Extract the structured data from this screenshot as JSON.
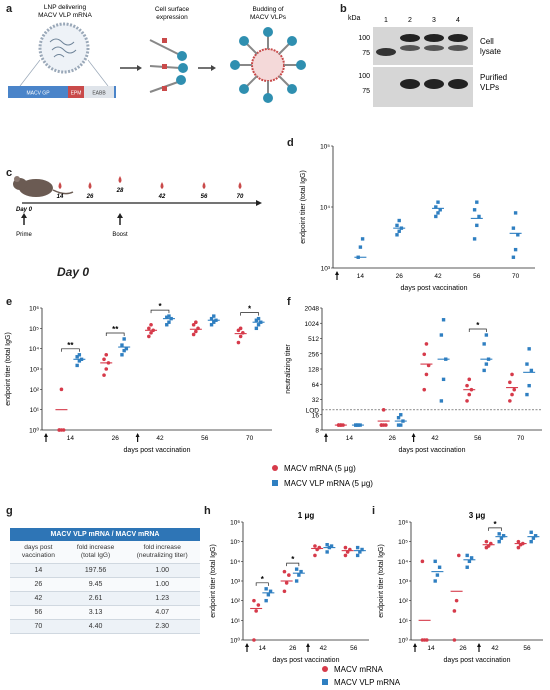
{
  "panel_letters": {
    "a": "a",
    "b": "b",
    "c": "c",
    "d": "d",
    "e": "e",
    "f": "f",
    "g": "g",
    "h": "h",
    "i": "i"
  },
  "panel_a": {
    "lnp_label": "LNP delivering\nMACV VLP mRNA",
    "surface_label": "Cell surface\nexpression",
    "budding_label": "Budding of\nMACV VLPs",
    "construct": {
      "gp": "MACV GP",
      "epm": "EPM",
      "eabb": "EABB"
    }
  },
  "panel_b": {
    "kda": "kDa",
    "lanes": [
      "1",
      "2",
      "3",
      "4"
    ],
    "markers_top": [
      "100",
      "75"
    ],
    "markers_bottom": [
      "100",
      "75"
    ],
    "row_labels": [
      "Cell\nlysate",
      "Purified\nVLPs"
    ]
  },
  "panel_c": {
    "days": [
      "14",
      "26",
      "28",
      "42",
      "56",
      "70"
    ],
    "day0": "Day 0",
    "prime": "Prime",
    "boost": "Boost",
    "big_day0": "Day 0"
  },
  "legend_ef": {
    "red_label": "MACV mRNA (5 μg)",
    "blue_label": "MACV VLP mRNA (5 μg)",
    "red_color": "#d63a4a",
    "blue_color": "#2f7fc1"
  },
  "legend_hi": {
    "red_label": "MACV mRNA",
    "blue_label": "MACV VLP mRNA"
  },
  "table_g": {
    "title": "MACV VLP mRNA / MACV mRNA",
    "headers": [
      "days post vaccination",
      "fold increase (total IgG)",
      "fold increase (neutralizing titer)"
    ],
    "rows": [
      [
        "14",
        "197.56",
        "1.00"
      ],
      [
        "26",
        "9.45",
        "1.00"
      ],
      [
        "42",
        "2.61",
        "1.23"
      ],
      [
        "56",
        "3.13",
        "4.07"
      ],
      [
        "70",
        "4.40",
        "2.30"
      ]
    ]
  },
  "chart_data": [
    {
      "panel": "d",
      "type": "scatter",
      "scale": "log",
      "xlabel": "days post vaccination",
      "ylabel": "endpoint titer (total IgG)",
      "categories": [
        "14",
        "26",
        "42",
        "56",
        "70"
      ],
      "ylim_exp": [
        3,
        5
      ],
      "yticks": [
        "10³",
        "10⁴",
        "10⁵"
      ],
      "series": [
        {
          "color": "blue",
          "points": [
            [
              1500,
              2200,
              3000
            ],
            [
              3500,
              4000,
              4500,
              5000,
              6000
            ],
            [
              7000,
              8000,
              9000,
              10000,
              12000
            ],
            [
              3000,
              5000,
              7000,
              9000,
              12000
            ],
            [
              1500,
              2000,
              3500,
              4500,
              8000
            ]
          ],
          "means": [
            1500,
            4500,
            9500,
            6500,
            3700
          ]
        }
      ]
    },
    {
      "panel": "e",
      "type": "scatter",
      "scale": "log",
      "xlabel": "days post vaccination",
      "ylabel": "endpoint titer (total IgG)",
      "categories": [
        "14",
        "26",
        "42",
        "56",
        "70"
      ],
      "ylim_exp": [
        0,
        6
      ],
      "yticks": [
        "10⁰",
        "10¹",
        "10²",
        "10³",
        "10⁴",
        "10⁵",
        "10⁶"
      ],
      "significance": [
        "**",
        "**",
        "*",
        "",
        "*"
      ],
      "series": [
        {
          "color": "red",
          "points": [
            [
              1,
              1,
              1,
              1,
              100
            ],
            [
              500,
              1000,
              2000,
              3000,
              5000
            ],
            [
              40000,
              60000,
              80000,
              100000,
              150000
            ],
            [
              50000,
              70000,
              100000,
              150000,
              200000
            ],
            [
              20000,
              40000,
              60000,
              80000,
              100000
            ]
          ],
          "means": [
            10,
            2000,
            80000,
            90000,
            55000
          ]
        },
        {
          "color": "blue",
          "points": [
            [
              1500,
              2500,
              3000,
              4000,
              5000
            ],
            [
              5000,
              8000,
              10000,
              15000,
              30000
            ],
            [
              150000,
              200000,
              300000,
              350000,
              400000
            ],
            [
              150000,
              200000,
              250000,
              300000,
              400000
            ],
            [
              100000,
              150000,
              200000,
              250000,
              300000
            ]
          ],
          "means": [
            3000,
            12000,
            300000,
            250000,
            200000
          ]
        }
      ]
    },
    {
      "panel": "f",
      "type": "scatter",
      "scale": "log2",
      "xlabel": "days post vaccination",
      "ylabel": "neutralizing titer",
      "categories": [
        "14",
        "26",
        "42",
        "56",
        "70"
      ],
      "yticks": [
        "8",
        "16",
        "32",
        "64",
        "128",
        "256",
        "512",
        "1024",
        "2048"
      ],
      "lod": "LOD",
      "lod_value": 20,
      "significance": [
        "",
        "",
        "",
        "*",
        ""
      ],
      "series": [
        {
          "color": "red",
          "points": [
            [
              10,
              10,
              10,
              10,
              10
            ],
            [
              10,
              10,
              10,
              10,
              20
            ],
            [
              50,
              100,
              150,
              250,
              400
            ],
            [
              30,
              40,
              50,
              60,
              80
            ],
            [
              30,
              40,
              50,
              70,
              100
            ]
          ],
          "means": [
            10,
            12,
            160,
            50,
            55
          ]
        },
        {
          "color": "blue",
          "points": [
            [
              10,
              10,
              10,
              10,
              10
            ],
            [
              10,
              10,
              12,
              14,
              16
            ],
            [
              30,
              80,
              200,
              600,
              1200
            ],
            [
              120,
              160,
              200,
              400,
              600
            ],
            [
              40,
              60,
              120,
              160,
              320
            ]
          ],
          "means": [
            10,
            12,
            200,
            200,
            110
          ]
        }
      ]
    },
    {
      "panel": "h",
      "type": "scatter",
      "scale": "log",
      "title": "1 μg",
      "xlabel": "days post vaccination",
      "ylabel": "endpoint titer (total IgG)",
      "categories": [
        "14",
        "26",
        "42",
        "56"
      ],
      "ylim_exp": [
        0,
        6
      ],
      "yticks": [
        "10⁰",
        "10¹",
        "10²",
        "10³",
        "10⁴",
        "10⁵",
        "10⁶"
      ],
      "significance": [
        "*",
        "*",
        "",
        ""
      ],
      "series": [
        {
          "color": "red",
          "points": [
            [
              1,
              30,
              60,
              100
            ],
            [
              300,
              800,
              2000,
              3000
            ],
            [
              20000,
              40000,
              50000,
              60000
            ],
            [
              20000,
              30000,
              40000,
              50000
            ]
          ],
          "means": [
            40,
            1000,
            45000,
            35000
          ]
        },
        {
          "color": "blue",
          "points": [
            [
              100,
              200,
              300,
              400
            ],
            [
              1000,
              2000,
              3000,
              4000
            ],
            [
              30000,
              50000,
              60000,
              70000
            ],
            [
              20000,
              30000,
              40000,
              50000
            ]
          ],
          "means": [
            250,
            2500,
            50000,
            35000
          ]
        }
      ]
    },
    {
      "panel": "i",
      "type": "scatter",
      "scale": "log",
      "title": "3 μg",
      "xlabel": "days post vaccination",
      "ylabel": "endpoint titer (total IgG)",
      "categories": [
        "14",
        "26",
        "42",
        "56"
      ],
      "ylim_exp": [
        0,
        6
      ],
      "yticks": [
        "10⁰",
        "10¹",
        "10²",
        "10³",
        "10⁴",
        "10⁵",
        "10⁶"
      ],
      "significance": [
        "",
        "",
        "*",
        ""
      ],
      "series": [
        {
          "color": "red",
          "points": [
            [
              1,
              1,
              1,
              10000
            ],
            [
              30,
              100,
              20000,
              1
            ],
            [
              50000,
              60000,
              80000,
              100000
            ],
            [
              50000,
              70000,
              80000,
              100000
            ]
          ],
          "means": [
            10,
            300,
            70000,
            80000
          ]
        },
        {
          "color": "blue",
          "points": [
            [
              1000,
              2000,
              5000,
              10000
            ],
            [
              5000,
              10000,
              15000,
              20000
            ],
            [
              100000,
              150000,
              200000,
              250000
            ],
            [
              100000,
              150000,
              200000,
              300000
            ]
          ],
          "means": [
            3000,
            12000,
            180000,
            180000
          ]
        }
      ]
    }
  ]
}
